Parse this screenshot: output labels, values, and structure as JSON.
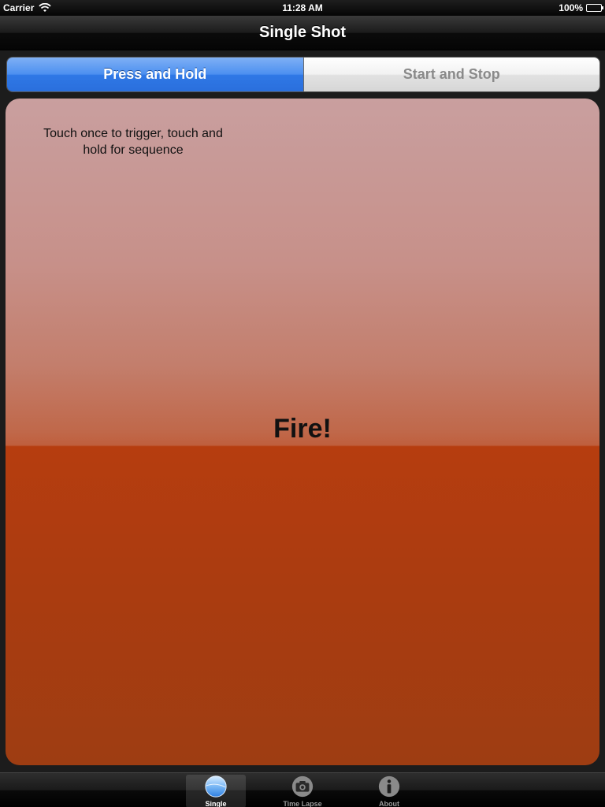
{
  "status_bar": {
    "carrier": "Carrier",
    "time": "11:28 AM",
    "battery": "100%"
  },
  "nav": {
    "title": "Single Shot"
  },
  "segmented": {
    "options": [
      "Press and Hold",
      "Start and Stop"
    ],
    "selected_index": 0
  },
  "fire_panel": {
    "hint": "Touch once to trigger, touch and hold for sequence",
    "button_label": "Fire!"
  },
  "tab_bar": {
    "items": [
      {
        "label": "Single",
        "icon": "sphere-icon",
        "selected": true
      },
      {
        "label": "Time Lapse",
        "icon": "camera-icon",
        "selected": false
      },
      {
        "label": "About",
        "icon": "info-icon",
        "selected": false
      }
    ]
  },
  "colors": {
    "accent_blue": "#2f78e6",
    "fire_top": "#c99f9f",
    "fire_bottom": "#ac3c10"
  }
}
